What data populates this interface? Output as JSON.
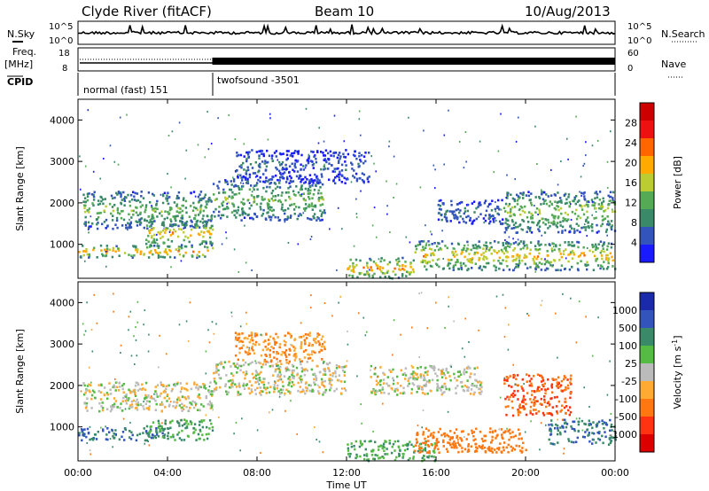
{
  "header": {
    "station": "Clyde River (fitACF)",
    "beam": "Beam 10",
    "date": "10/Aug/2013"
  },
  "panels": {
    "nsky_label": "N.Sky",
    "nsky_ticks": [
      "10^5",
      "10^0"
    ],
    "nsearch_label": "N.Search",
    "freq_label": "Freq.",
    "freq_unit": "[MHz]",
    "freq_ticks": [
      "18",
      "8"
    ],
    "nave_label": "Nave",
    "nave_ticks": [
      "60",
      "0"
    ],
    "cpid_label": "CPID",
    "cpid_segments": [
      "normal (fast) 151",
      "twofsound -3501"
    ]
  },
  "colors": {
    "power": [
      "#1a1aff",
      "#3355bb",
      "#3a8a6a",
      "#55aa55",
      "#bbcc33",
      "#ffaa00",
      "#ff6600",
      "#ee1111",
      "#cc0000"
    ],
    "velocity": [
      "#1a2aaa",
      "#3355bb",
      "#3a8a6a",
      "#55bb44",
      "#bbbbbb",
      "#ffaa33",
      "#ff7711",
      "#ff3311",
      "#dd0000"
    ]
  },
  "chart_data": [
    {
      "type": "heatmap",
      "title": "Power",
      "ylabel": "Slant Range [km]",
      "xlabel": "Time UT",
      "x_ticks": [
        "00:00",
        "04:00",
        "08:00",
        "12:00",
        "16:00",
        "20:00",
        "00:00"
      ],
      "y_ticks": [
        1000,
        2000,
        3000,
        4000
      ],
      "xlim_hours": [
        0,
        24
      ],
      "ylim_km": [
        180,
        4500
      ],
      "colorbar_label": "Power [dB]",
      "colorbar_ticks": [
        4,
        8,
        12,
        16,
        20,
        24,
        28
      ],
      "colorbar_range": [
        0,
        32
      ],
      "bands": [
        {
          "t0": 0,
          "t1": 6,
          "r0": 700,
          "r1": 1000,
          "peak": 22
        },
        {
          "t0": 0.2,
          "t1": 6,
          "r0": 1400,
          "r1": 2300,
          "peak": 14
        },
        {
          "t0": 3,
          "t1": 6,
          "r0": 1000,
          "r1": 1600,
          "peak": 20
        },
        {
          "t0": 6,
          "t1": 11,
          "r0": 1600,
          "r1": 2600,
          "peak": 14
        },
        {
          "t0": 7,
          "t1": 9,
          "r0": 2600,
          "r1": 3300,
          "peak": 8
        },
        {
          "t0": 9,
          "t1": 13,
          "r0": 2500,
          "r1": 3300,
          "peak": 6
        },
        {
          "t0": 12,
          "t1": 15,
          "r0": 200,
          "r1": 700,
          "peak": 22
        },
        {
          "t0": 15,
          "t1": 24,
          "r0": 400,
          "r1": 1100,
          "peak": 20
        },
        {
          "t0": 19,
          "t1": 24,
          "r0": 1300,
          "r1": 2300,
          "peak": 16
        },
        {
          "t0": 16,
          "t1": 19,
          "r0": 1500,
          "r1": 2100,
          "peak": 8
        }
      ]
    },
    {
      "type": "heatmap",
      "title": "Velocity",
      "ylabel": "Slant Range [km]",
      "xlabel": "Time UT",
      "x_ticks": [
        "00:00",
        "04:00",
        "08:00",
        "12:00",
        "16:00",
        "20:00",
        "00:00"
      ],
      "y_ticks": [
        1000,
        2000,
        3000,
        4000
      ],
      "xlim_hours": [
        0,
        24
      ],
      "ylim_km": [
        180,
        4500
      ],
      "colorbar_label": "Velocity [m s^-1]",
      "colorbar_ticks": [
        "1000",
        "500",
        "100",
        "25",
        "-25",
        "-100",
        "-500",
        "-1000"
      ],
      "bands": [
        {
          "t0": 0,
          "t1": 4,
          "r0": 700,
          "r1": 1000,
          "v": 500
        },
        {
          "t0": 0.2,
          "t1": 6,
          "r0": 1400,
          "r1": 2100,
          "v": 0
        },
        {
          "t0": 3,
          "t1": 6,
          "r0": 700,
          "r1": 1200,
          "v": 100
        },
        {
          "t0": 6,
          "t1": 12,
          "r0": 1800,
          "r1": 2600,
          "v": 0
        },
        {
          "t0": 7,
          "t1": 11,
          "r0": 2600,
          "r1": 3300,
          "v": -100
        },
        {
          "t0": 12,
          "t1": 16,
          "r0": 200,
          "r1": 700,
          "v": 100
        },
        {
          "t0": 15,
          "t1": 20,
          "r0": 400,
          "r1": 1000,
          "v": -300
        },
        {
          "t0": 13,
          "t1": 18,
          "r0": 1800,
          "r1": 2500,
          "v": 0
        },
        {
          "t0": 19,
          "t1": 22,
          "r0": 1300,
          "r1": 2300,
          "v": -500
        },
        {
          "t0": 21,
          "t1": 24,
          "r0": 600,
          "r1": 1200,
          "v": 500
        }
      ]
    }
  ]
}
